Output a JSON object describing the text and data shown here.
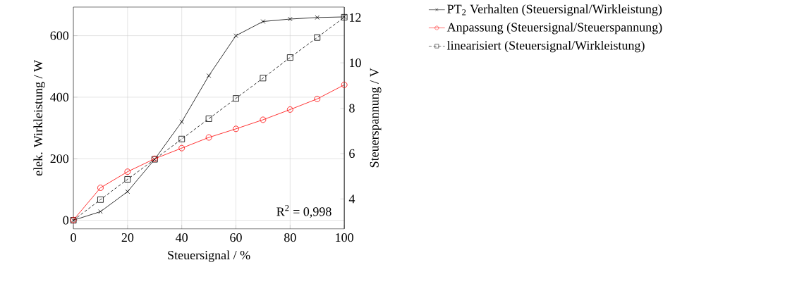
{
  "chart_data": {
    "type": "line",
    "xlabel": "Steuersignal / %",
    "ylabel": "elek. Wirkleistung / W",
    "y2label": "Steuerspannung / V",
    "x": [
      0,
      10,
      20,
      30,
      40,
      50,
      60,
      70,
      80,
      90,
      100
    ],
    "series": [
      {
        "name": "PT$_{2}$ Verhalten (Steuersignal/Wirkleistung)",
        "color": "#000000",
        "marker": "cross",
        "line_style": "solid",
        "values": [
          0,
          28,
          93,
          198,
          320,
          470,
          600,
          646,
          654,
          659,
          661
        ]
      },
      {
        "name": "Anpassung (Steuersignal/Steuerspannung)",
        "color": "#ff0000",
        "marker": "circle",
        "line_style": "solid",
        "axis": "y2",
        "values": [
          3.07,
          4.49,
          5.2,
          5.77,
          6.24,
          6.71,
          7.09,
          7.49,
          7.94,
          8.41,
          9.03
        ]
      },
      {
        "name": "linearisiert (Steuersignal/Wirkleistung)",
        "color": "#000000",
        "marker": "square",
        "line_style": "dashed",
        "values": [
          0,
          67,
          133,
          198,
          264,
          330,
          396,
          462,
          529,
          594,
          660
        ]
      }
    ],
    "xlim": [
      0,
      100
    ],
    "xticks": [
      0,
      20,
      40,
      60,
      80,
      100
    ],
    "ylim": [
      -28,
      693
    ],
    "yticks": [
      0,
      200,
      400,
      600
    ],
    "y2lim": [
      2.68,
      12.46
    ],
    "y2ticks": [
      4,
      6,
      8,
      10,
      12
    ],
    "annotations": [
      "R$^{2}$ = 0,998"
    ],
    "grid": true,
    "legend": "top right"
  }
}
